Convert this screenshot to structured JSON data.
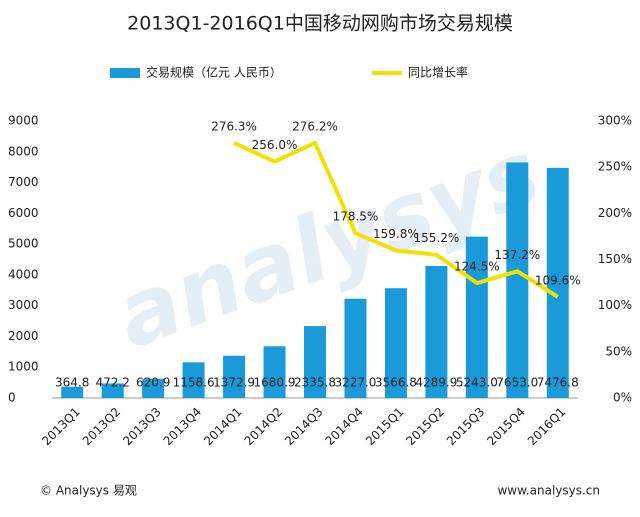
{
  "chart_data": {
    "type": "bar-line",
    "title": "2013Q1-2016Q1中国移动网购市场交易规模",
    "categories": [
      "2013Q1",
      "2013Q2",
      "2013Q3",
      "2013Q4",
      "2014Q1",
      "2014Q2",
      "2014Q3",
      "2014Q4",
      "2015Q1",
      "2015Q2",
      "2015Q3",
      "2015Q4",
      "2016Q1"
    ],
    "series": [
      {
        "name": "交易规模（亿元  人民币）",
        "type": "bar",
        "color": "#1a9ad9",
        "values": [
          364.8,
          472.2,
          620.9,
          1158.6,
          1372.9,
          1680.9,
          2335.8,
          3227.0,
          3566.8,
          4289.9,
          5243.0,
          7653.0,
          7476.8
        ],
        "value_labels": [
          "364.8",
          "472.2",
          "620.9",
          "1158.6",
          "1372.9",
          "1680.9",
          "2335.8",
          "3227.0",
          "3566.8",
          "4289.9",
          "5243.0",
          "7653.0",
          "7476.8"
        ]
      },
      {
        "name": "同比增长率",
        "type": "line",
        "axis": "y2",
        "color": "#f2e100",
        "values": [
          null,
          null,
          null,
          null,
          276.3,
          256.0,
          276.2,
          178.5,
          159.8,
          155.2,
          124.5,
          137.2,
          109.6
        ],
        "value_labels": [
          null,
          null,
          null,
          null,
          "276.3%",
          "256.0%",
          "276.2%",
          "178.5%",
          "159.8%",
          "155.2%",
          "124.5%",
          "137.2%",
          "109.6%"
        ]
      }
    ],
    "ylim": [
      0,
      9000
    ],
    "yticks": [
      0,
      1000,
      2000,
      3000,
      4000,
      5000,
      6000,
      7000,
      8000,
      9000
    ],
    "y2lim": [
      0,
      300
    ],
    "y2ticks": [
      {
        "value": 0,
        "label": "0%"
      },
      {
        "value": 50,
        "label": "50%"
      },
      {
        "value": 100,
        "label": "100%"
      },
      {
        "value": 150,
        "label": "150%"
      },
      {
        "value": 200,
        "label": "200%"
      },
      {
        "value": 250,
        "label": "250%"
      },
      {
        "value": 300,
        "label": "300%"
      }
    ],
    "watermark": "analysys",
    "footer_left": "© Analysys 易观",
    "footer_right": "www.analysys.cn"
  }
}
